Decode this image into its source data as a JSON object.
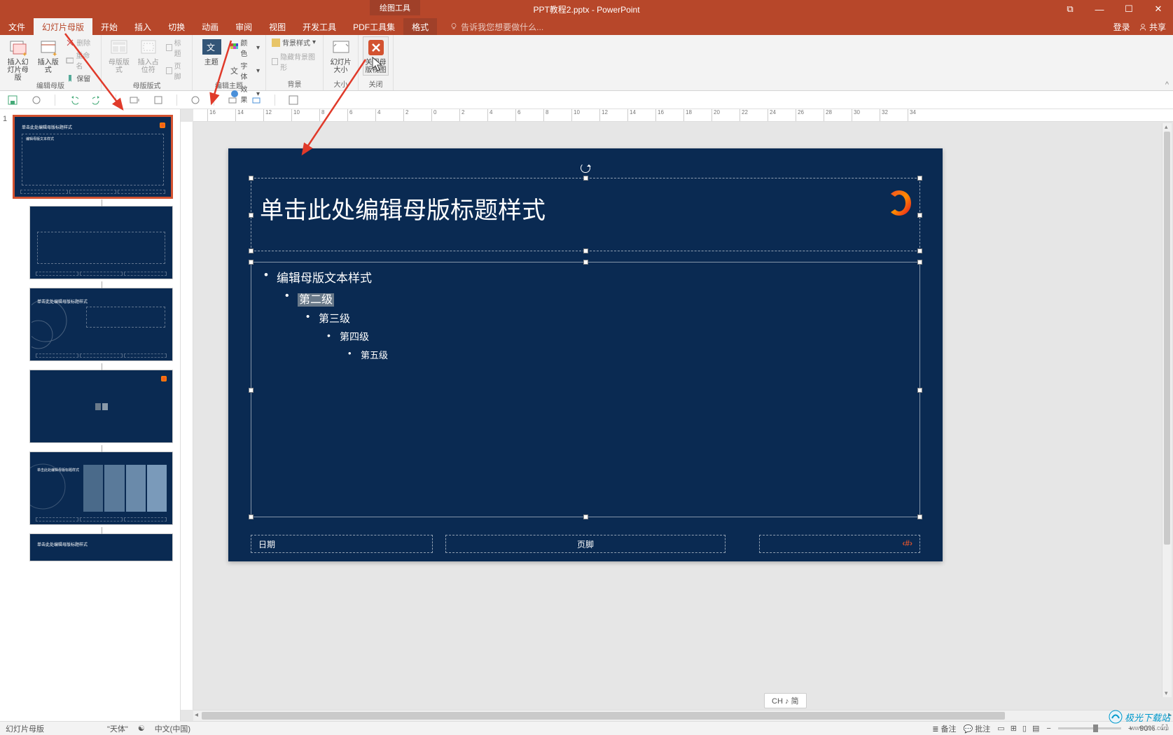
{
  "title": {
    "context_tool": "绘图工具",
    "filename": "PPT教程2.pptx - PowerPoint"
  },
  "win": {
    "restore_icon": "⧉",
    "min_icon": "—",
    "max_icon": "☐",
    "close_icon": "✕"
  },
  "tabs": {
    "file": "文件",
    "slide_master": "幻灯片母版",
    "home": "开始",
    "insert": "插入",
    "transitions": "切换",
    "animations": "动画",
    "review": "审阅",
    "view": "视图",
    "developer": "开发工具",
    "pdf": "PDF工具集",
    "format": "格式"
  },
  "tellme": "告诉我您想要做什么...",
  "user": {
    "login": "登录",
    "share": "共享"
  },
  "ribbon": {
    "edit_master": {
      "label": "编辑母版",
      "insert_slide_master": "插入幻灯片母版",
      "insert_layout": "插入版式",
      "delete": "删除",
      "rename": "重命名",
      "preserve": "保留"
    },
    "master_layout": {
      "label": "母版版式",
      "master_layout_btn": "母版版式",
      "insert_placeholder": "插入占位符",
      "title_cb": "标题",
      "footers_cb": "页脚"
    },
    "edit_theme": {
      "label": "编辑主题",
      "themes": "主题",
      "colors": "颜色",
      "fonts": "字体",
      "effects": "效果"
    },
    "background": {
      "label": "背景",
      "bg_styles": "背景样式",
      "hide_bg": "隐藏背景图形"
    },
    "size": {
      "label": "大小",
      "slide_size": "幻灯片大小"
    },
    "close": {
      "label": "关闭",
      "close_master": "关闭母版视图"
    }
  },
  "slide": {
    "title_text": "单击此处编辑母版标题样式",
    "body_l1": "编辑母版文本样式",
    "body_l2": "第二级",
    "body_l3": "第三级",
    "body_l4": "第四级",
    "body_l5": "第五级",
    "date": "日期",
    "footer": "页脚",
    "number": "‹#›"
  },
  "colors": {
    "slide_bg": "#0a2a52",
    "accent": "#d35230",
    "ribbon_bg": "#b7472a"
  },
  "ime": "CH ♪ 简",
  "status": {
    "mode": "幻灯片母版",
    "font_hint": "\"天体\"",
    "lang_icon": "☯",
    "lang": "中文(中国)",
    "notes": "备注",
    "comments": "批注",
    "zoom": "90%"
  },
  "thumb_titles": {
    "master": "单击此处编辑母版标题样式",
    "layout2": "单击此处编辑母版标题样式",
    "layout4": "单击此处编辑母版标题样式",
    "layout5": "单击此处编辑母版标题样式",
    "layout_content_title": "编辑母版文本样式"
  },
  "watermark": {
    "brand": "极光下载站",
    "url": "www.xz7.com"
  },
  "ruler_labels": [
    "16",
    "14",
    "12",
    "10",
    "8",
    "6",
    "4",
    "2",
    "0",
    "2",
    "4",
    "6",
    "8",
    "10",
    "12",
    "14",
    "16",
    "18",
    "20",
    "22",
    "24",
    "26",
    "28",
    "30",
    "32",
    "34"
  ]
}
